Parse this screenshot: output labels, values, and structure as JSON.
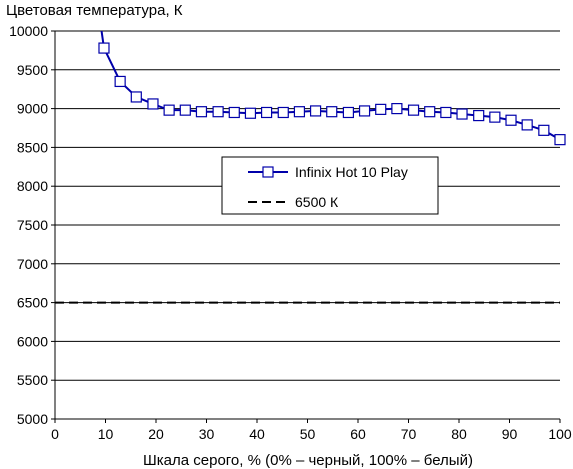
{
  "chart_data": {
    "type": "line",
    "ylabel": "Цветовая температура, К",
    "xlabel": "Шкала серого, % (0% – черный, 100% – белый)",
    "xlim": [
      0,
      100
    ],
    "ylim": [
      5000,
      10000
    ],
    "x_ticks": [
      "0",
      "10",
      "20",
      "30",
      "40",
      "50",
      "60",
      "70",
      "80",
      "90",
      "100"
    ],
    "y_ticks": [
      "5000",
      "5500",
      "6000",
      "6500",
      "7000",
      "7500",
      "8000",
      "8500",
      "9000",
      "9500",
      "10000"
    ],
    "grid": "horizontal",
    "legend_position": "center-right",
    "series": [
      {
        "name": "Infinix Hot 10 Play",
        "color": "#0000aa",
        "marker": "open-square",
        "line_start": [
          9.0,
          10100
        ],
        "x": [
          9.7,
          12.9,
          16.1,
          19.4,
          22.6,
          25.8,
          29.0,
          32.3,
          35.5,
          38.7,
          41.9,
          45.2,
          48.4,
          51.6,
          54.8,
          58.1,
          61.3,
          64.5,
          67.7,
          71.0,
          74.2,
          77.4,
          80.6,
          83.9,
          87.1,
          90.3,
          93.5,
          96.8,
          100.0
        ],
        "values": [
          9780,
          9350,
          9150,
          9060,
          8980,
          8980,
          8960,
          8960,
          8950,
          8940,
          8950,
          8950,
          8960,
          8970,
          8960,
          8950,
          8970,
          8990,
          9000,
          8980,
          8960,
          8950,
          8930,
          8910,
          8890,
          8850,
          8790,
          8720,
          8600
        ]
      },
      {
        "name": "6500 К",
        "color": "#000000",
        "style": "dashed",
        "x": [
          0,
          100
        ],
        "values": [
          6500,
          6500
        ]
      }
    ]
  }
}
